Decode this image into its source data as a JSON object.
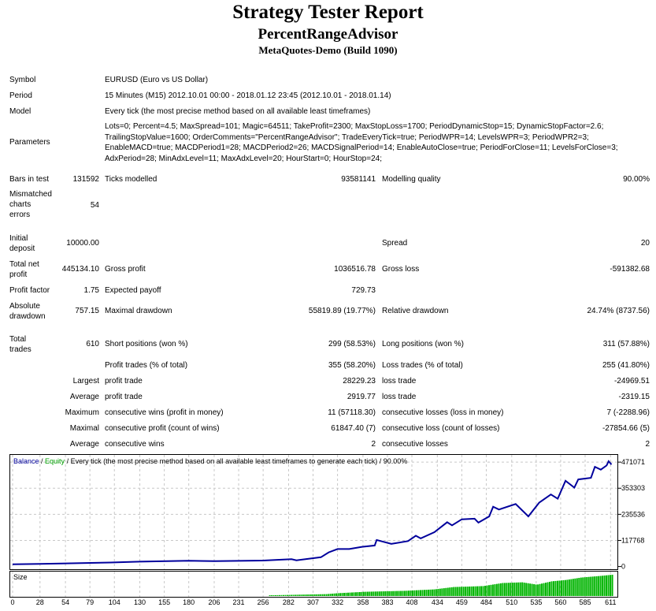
{
  "header": {
    "title": "Strategy Tester Report",
    "expert": "PercentRangeAdvisor",
    "server": "MetaQuotes-Demo (Build 1090)"
  },
  "info": {
    "symbol_label": "Symbol",
    "symbol": "EURUSD (Euro vs US Dollar)",
    "period_label": "Period",
    "period": "15 Minutes (M15) 2012.10.01 00:00 - 2018.01.12 23:45 (2012.10.01 - 2018.01.14)",
    "model_label": "Model",
    "model": "Every tick (the most precise method based on all available least timeframes)",
    "parameters_label": "Parameters",
    "parameters_lines": [
      "Lots=0; Percent=4.5; MaxSpread=101; Magic=64511; TakeProfit=2300; MaxStopLoss=1700; PeriodDynamicStop=15; DynamicStopFactor=2.6;",
      "TrailingStopValue=1600; OrderComments=\"PercentRangeAdvisor\"; TradeEveryTick=true; PeriodWPR=14; LevelsWPR=3; PeriodWPR2=3;",
      "EnableMACD=true; MACDPeriod1=28; MACDPeriod2=26; MACDSignalPeriod=14; EnableAutoClose=true; PeriodForClose=11; LevelsForClose=3;",
      "AdxPeriod=28; MinAdxLevel=11; MaxAdxLevel=20; HourStart=0; HourStop=24;"
    ]
  },
  "stats": {
    "bars_label": "Bars in test",
    "bars": "131592",
    "ticks_label": "Ticks modelled",
    "ticks": "93581141",
    "quality_label": "Modelling quality",
    "quality": "90.00%",
    "mismatch_label_1": "Mismatched",
    "mismatch_label_2": "charts",
    "mismatch_label_3": "errors",
    "mismatch": "54",
    "deposit_label_1": "Initial",
    "deposit_label_2": "deposit",
    "deposit": "10000.00",
    "spread_label": "Spread",
    "spread": "20",
    "net_label_1": "Total net",
    "net_label_2": "profit",
    "net": "445134.10",
    "gross_profit_label": "Gross profit",
    "gross_profit": "1036516.78",
    "gross_loss_label": "Gross loss",
    "gross_loss": "-591382.68",
    "pf_label": "Profit factor",
    "pf": "1.75",
    "expected_label": "Expected payoff",
    "expected": "729.73",
    "abs_dd_label_1": "Absolute",
    "abs_dd_label_2": "drawdown",
    "abs_dd": "757.15",
    "max_dd_label": "Maximal drawdown",
    "max_dd": "55819.89 (19.77%)",
    "rel_dd_label": "Relative drawdown",
    "rel_dd": "24.74% (8737.56)",
    "trades_label_1": "Total",
    "trades_label_2": "trades",
    "trades": "610",
    "short_label": "Short positions (won %)",
    "short": "299 (58.53%)",
    "long_label": "Long positions (won %)",
    "long": "311 (57.88%)",
    "profit_trades_label": "Profit trades (% of total)",
    "profit_trades": "355 (58.20%)",
    "loss_trades_label": "Loss trades (% of total)",
    "loss_trades": "255 (41.80%)",
    "largest_label": "Largest",
    "largest_profit_label": "profit trade",
    "largest_profit": "28229.23",
    "largest_loss_label": "loss trade",
    "largest_loss": "-24969.51",
    "average_label": "Average",
    "average_profit_label": "profit trade",
    "average_profit": "2919.77",
    "average_loss_label": "loss trade",
    "average_loss": "-2319.15",
    "maximum_label": "Maximum",
    "max_wins_label": "consecutive wins (profit in money)",
    "max_wins": "11 (57118.30)",
    "max_losses_label": "consecutive losses (loss in money)",
    "max_losses": "7 (-2288.96)",
    "maximal_label": "Maximal",
    "maximal_profit_label": "consecutive profit (count of wins)",
    "maximal_profit": "61847.40 (7)",
    "maximal_loss_label": "consecutive loss (count of losses)",
    "maximal_loss": "-27854.66 (5)",
    "avg_cons_label": "Average",
    "avg_wins_label": "consecutive wins",
    "avg_wins": "2",
    "avg_losses_label": "consecutive losses",
    "avg_losses": "2"
  },
  "chart_data": {
    "type": "line",
    "legend": {
      "balance": "Balance",
      "sep": " / ",
      "equity": "Equity",
      "rest": " / Every tick (the most precise method based on all available least timeframes to generate each tick) / 90.00%"
    },
    "colors": {
      "balance": "#00009c",
      "equity": "#00a000",
      "size": "#00b400",
      "grid": "#c8c8c8"
    },
    "y_ticks": [
      0,
      117768,
      235536,
      353303,
      471071
    ],
    "x_ticks": [
      0,
      28,
      54,
      79,
      104,
      130,
      155,
      180,
      206,
      231,
      256,
      282,
      307,
      332,
      358,
      383,
      408,
      434,
      459,
      484,
      510,
      535,
      560,
      585,
      611
    ],
    "xlim": [
      0,
      618
    ],
    "ylim": [
      -5000,
      500000
    ],
    "size_label": "Size",
    "balance": [
      [
        0,
        10000
      ],
      [
        28,
        12000
      ],
      [
        50,
        14000
      ],
      [
        100,
        18000
      ],
      [
        130,
        22000
      ],
      [
        180,
        26000
      ],
      [
        206,
        24000
      ],
      [
        256,
        27000
      ],
      [
        285,
        33000
      ],
      [
        290,
        28000
      ],
      [
        315,
        42000
      ],
      [
        323,
        64000
      ],
      [
        332,
        79000
      ],
      [
        344,
        79000
      ],
      [
        357,
        89000
      ],
      [
        370,
        95000
      ],
      [
        372,
        120000
      ],
      [
        387,
        102000
      ],
      [
        404,
        115000
      ],
      [
        412,
        139000
      ],
      [
        417,
        127000
      ],
      [
        431,
        155000
      ],
      [
        444,
        200000
      ],
      [
        449,
        186000
      ],
      [
        459,
        213000
      ],
      [
        472,
        216000
      ],
      [
        476,
        198000
      ],
      [
        487,
        226000
      ],
      [
        491,
        270000
      ],
      [
        497,
        257000
      ],
      [
        514,
        282000
      ],
      [
        527,
        226000
      ],
      [
        538,
        288000
      ],
      [
        550,
        325000
      ],
      [
        557,
        306000
      ],
      [
        565,
        387000
      ],
      [
        574,
        356000
      ],
      [
        578,
        393000
      ],
      [
        591,
        400000
      ],
      [
        595,
        450000
      ],
      [
        601,
        437000
      ],
      [
        607,
        456000
      ],
      [
        609,
        475000
      ],
      [
        612,
        460000
      ]
    ],
    "size": [
      [
        262,
        0.03
      ],
      [
        320,
        0.08
      ],
      [
        332,
        0.12
      ],
      [
        360,
        0.18
      ],
      [
        400,
        0.22
      ],
      [
        430,
        0.28
      ],
      [
        450,
        0.38
      ],
      [
        480,
        0.42
      ],
      [
        500,
        0.55
      ],
      [
        520,
        0.58
      ],
      [
        535,
        0.48
      ],
      [
        550,
        0.62
      ],
      [
        565,
        0.68
      ],
      [
        580,
        0.78
      ],
      [
        600,
        0.85
      ],
      [
        612,
        0.9
      ]
    ]
  }
}
